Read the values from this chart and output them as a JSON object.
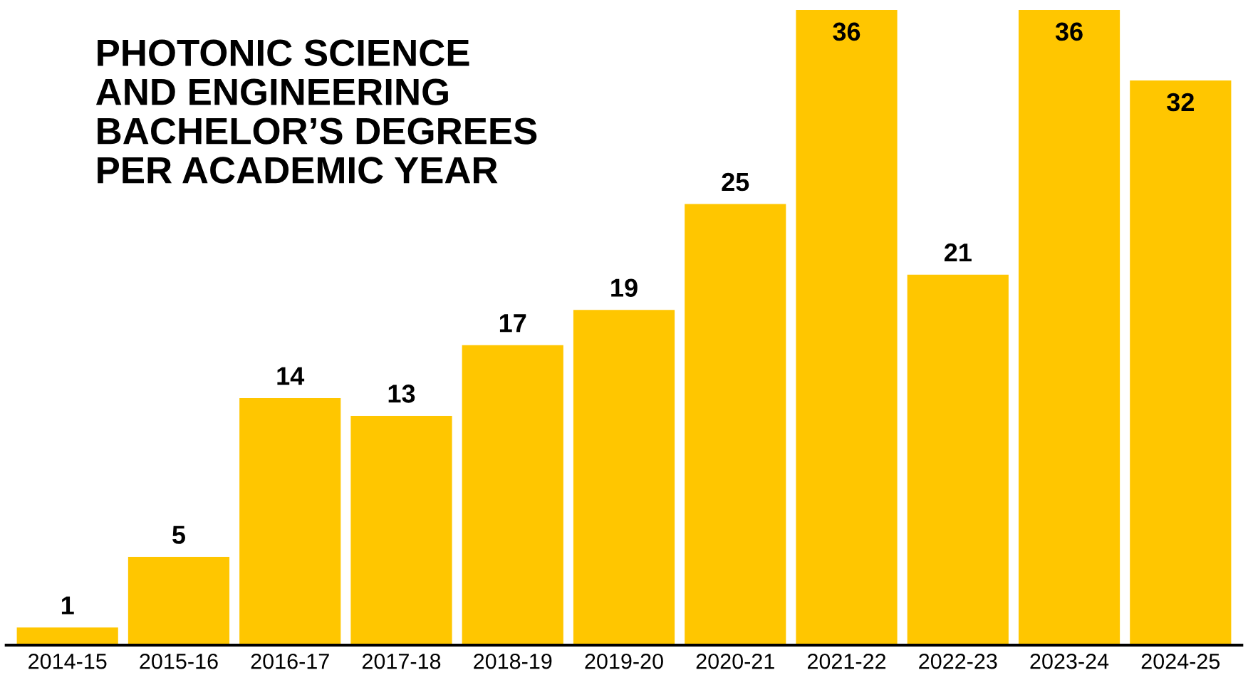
{
  "chart_data": {
    "type": "bar",
    "title": "PHOTONIC SCIENCE\nAND ENGINEERING\nBACHELOR’S DEGREES\nPER ACADEMIC YEAR",
    "categories": [
      "2014-15",
      "2015-16",
      "2016-17",
      "2017-18",
      "2018-19",
      "2019-20",
      "2020-21",
      "2021-22",
      "2022-23",
      "2023-24",
      "2024-25"
    ],
    "values": [
      1,
      5,
      14,
      13,
      17,
      19,
      25,
      36,
      21,
      36,
      32
    ],
    "color": "#ffc600",
    "data_labels": true,
    "tick_labels": "x"
  }
}
